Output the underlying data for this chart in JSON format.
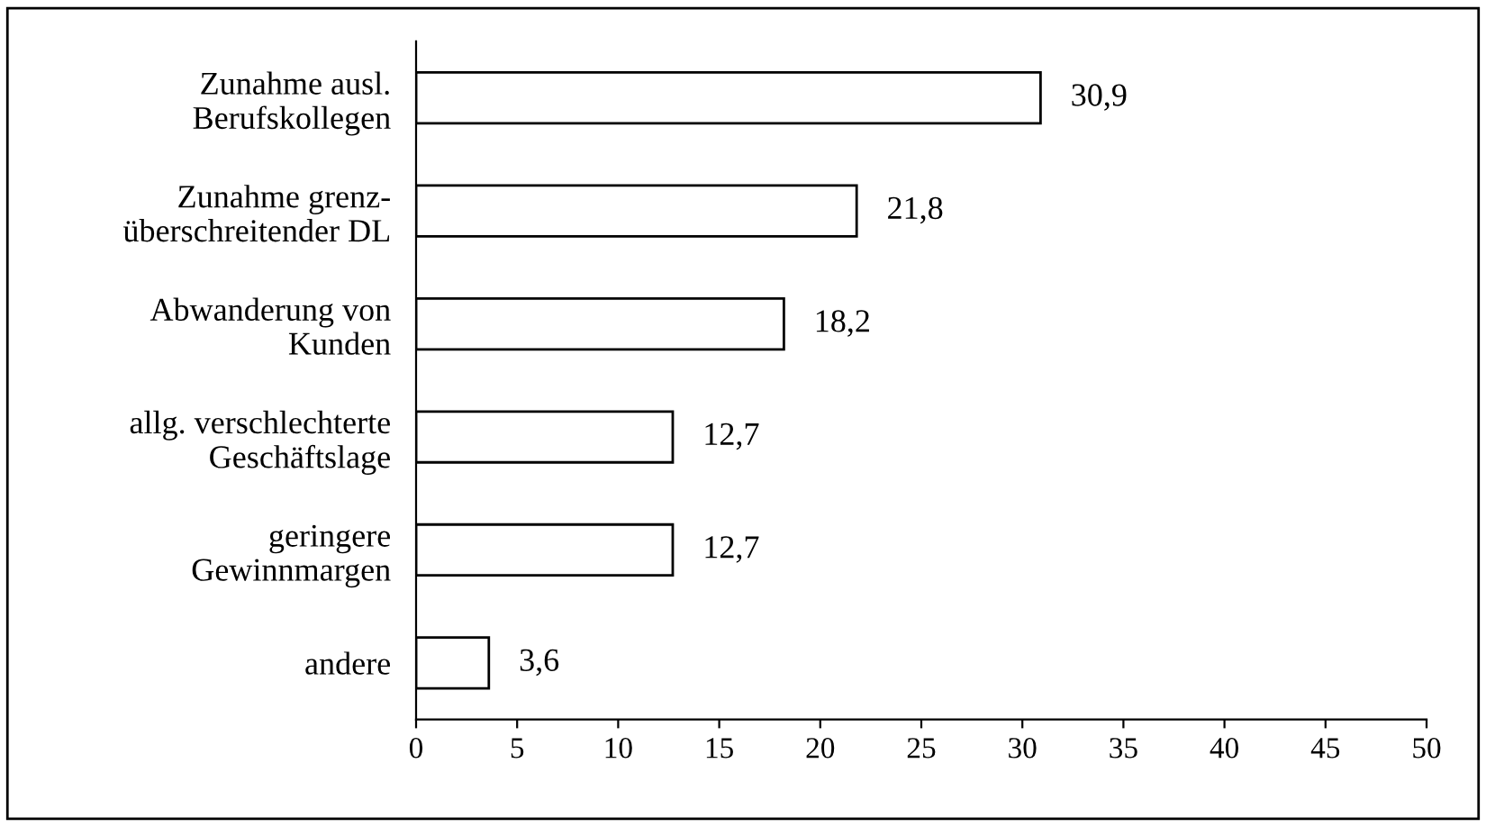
{
  "chart_data": {
    "type": "bar",
    "orientation": "horizontal",
    "categories": [
      "Zunahme ausl.\nBerufskollegen",
      "Zunahme grenz-\nüberschreitender DL",
      "Abwanderung von\nKunden",
      "allg. verschlechterte\nGeschäftslage",
      "geringere\nGewinnmargen",
      "andere"
    ],
    "values": [
      30.9,
      21.8,
      18.2,
      12.7,
      12.7,
      3.6
    ],
    "value_labels": [
      "30,9",
      "21,8",
      "18,2",
      "12,7",
      "12,7",
      "3,6"
    ],
    "color": "#ffffff",
    "xlim": [
      0,
      50
    ],
    "xticks": [
      0,
      5,
      10,
      15,
      20,
      25,
      30,
      35,
      40,
      45,
      50
    ],
    "grid": false,
    "legend": false
  }
}
